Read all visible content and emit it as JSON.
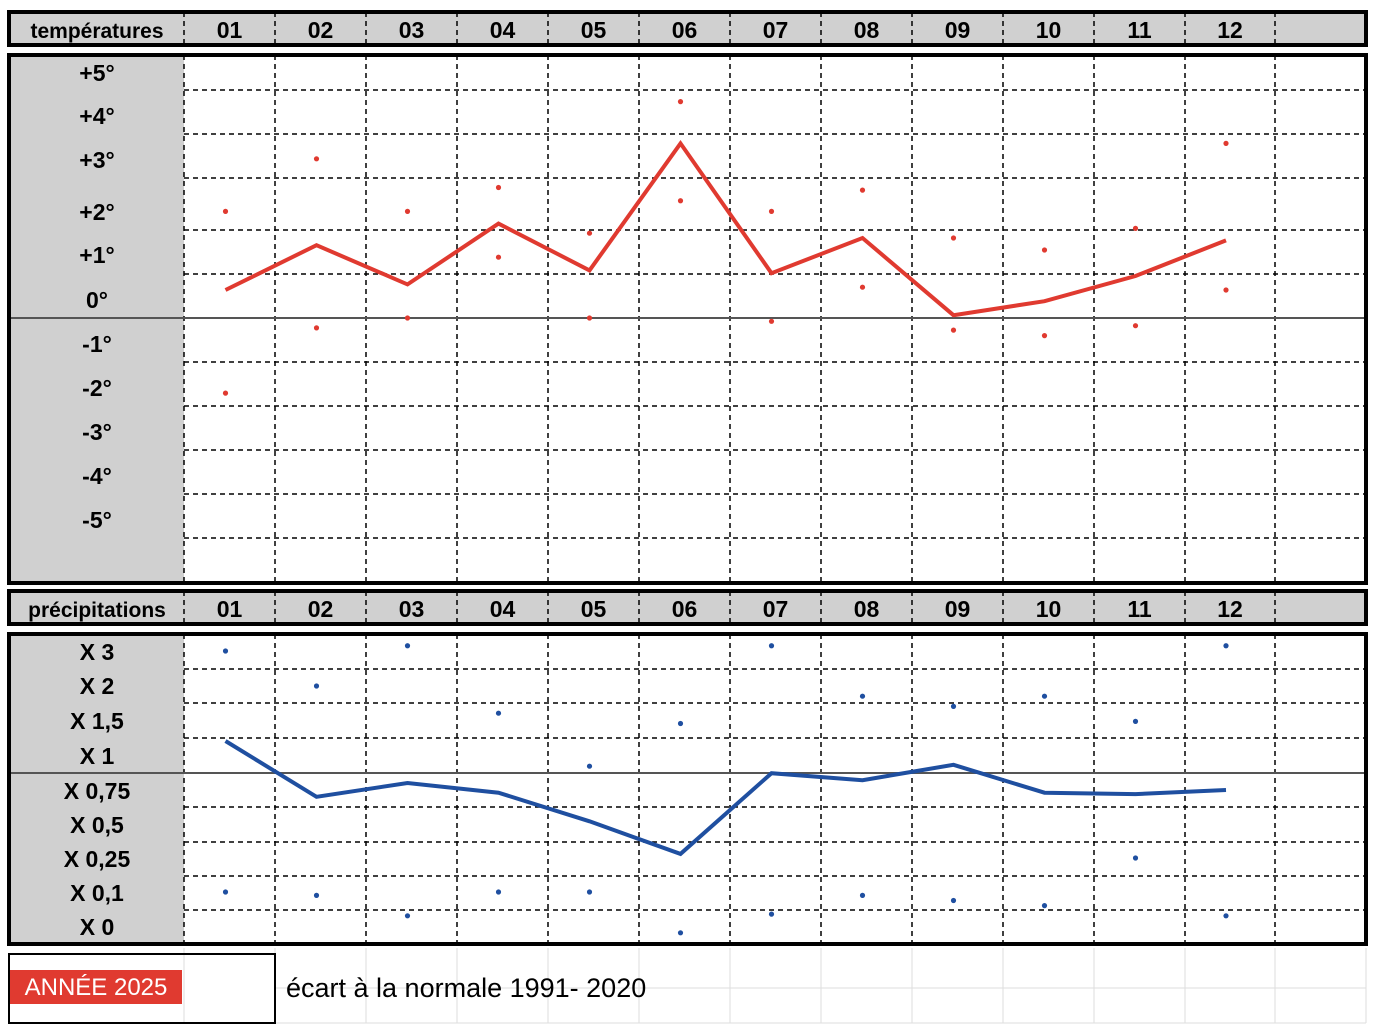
{
  "top": {
    "header_label": "températures",
    "months": [
      "01",
      "02",
      "03",
      "04",
      "05",
      "06",
      "07",
      "08",
      "09",
      "10",
      "11",
      "12"
    ],
    "row_labels": [
      "+5°",
      "+4°",
      "+3°",
      "+2°",
      "+1°",
      "0°",
      "-1°",
      "-2°",
      "-3°",
      "-4°",
      "-5°"
    ]
  },
  "bottom": {
    "header_label": "précipitations",
    "months": [
      "01",
      "02",
      "03",
      "04",
      "05",
      "06",
      "07",
      "08",
      "09",
      "10",
      "11",
      "12"
    ],
    "row_labels": [
      "X 3",
      "X 2",
      "X 1,5",
      "X 1",
      "X 0,75",
      "X 0,5",
      "X 0,25",
      "X 0,1",
      "X 0"
    ]
  },
  "footer": {
    "year_badge": "ANNÉE 2025",
    "caption": "écart à la normale 1991- 2020"
  },
  "colors": {
    "temperature": "#e03a30",
    "precipitation": "#1f4fa0",
    "label_bg": "#d0d0d0",
    "badge_bg": "#e03a30"
  },
  "chart_data": [
    {
      "type": "line",
      "title": "températures",
      "x": [
        "01",
        "02",
        "03",
        "04",
        "05",
        "06",
        "07",
        "08",
        "09",
        "10",
        "11",
        "12"
      ],
      "ylim": [
        -5.5,
        5.5
      ],
      "y_ticks": [
        "+5°",
        "+4°",
        "+3°",
        "+2°",
        "+1°",
        "0°",
        "-1°",
        "-2°",
        "-3°",
        "-4°",
        "-5°"
      ],
      "series": [
        {
          "style": "line",
          "values": [
            0.5,
            1.35,
            0.6,
            1.8,
            0.85,
            3.4,
            0.8,
            1.5,
            0.05,
            0.3,
            0.75,
            1.45
          ]
        },
        {
          "style": "points",
          "values": [
            2.05,
            3.05,
            2.05,
            2.5,
            1.6,
            4.35,
            2.05,
            2.45,
            1.5,
            1.25,
            1.7,
            3.4
          ]
        },
        {
          "style": "points",
          "values": [
            -1.9,
            -0.45,
            0.0,
            1.1,
            0.0,
            2.25,
            -0.15,
            0.55,
            -0.55,
            -0.8,
            -0.35,
            0.5
          ]
        }
      ]
    },
    {
      "type": "line",
      "title": "précipitations",
      "x": [
        "01",
        "02",
        "03",
        "04",
        "05",
        "06",
        "07",
        "08",
        "09",
        "10",
        "11",
        "12"
      ],
      "y_ticks": [
        "X 3",
        "X 2",
        "X 1,5",
        "X 1",
        "X 0,75",
        "X 0,5",
        "X 0,25",
        "X 0,1",
        "X 0"
      ],
      "series": [
        {
          "style": "line",
          "values": [
            1.2,
            0.7,
            0.8,
            0.73,
            0.52,
            0.28,
            0.87,
            0.82,
            0.93,
            0.73,
            0.72,
            0.75
          ]
        },
        {
          "style": "points",
          "values": [
            3.0,
            2.0,
            3.15,
            1.6,
            0.92,
            1.45,
            3.15,
            1.85,
            1.7,
            1.85,
            1.48,
            3.15
          ]
        },
        {
          "style": "points",
          "values": [
            0.1,
            0.09,
            0.03,
            0.1,
            0.1,
            -0.02,
            0.035,
            0.09,
            0.075,
            0.06,
            0.25,
            0.03
          ]
        }
      ]
    }
  ]
}
